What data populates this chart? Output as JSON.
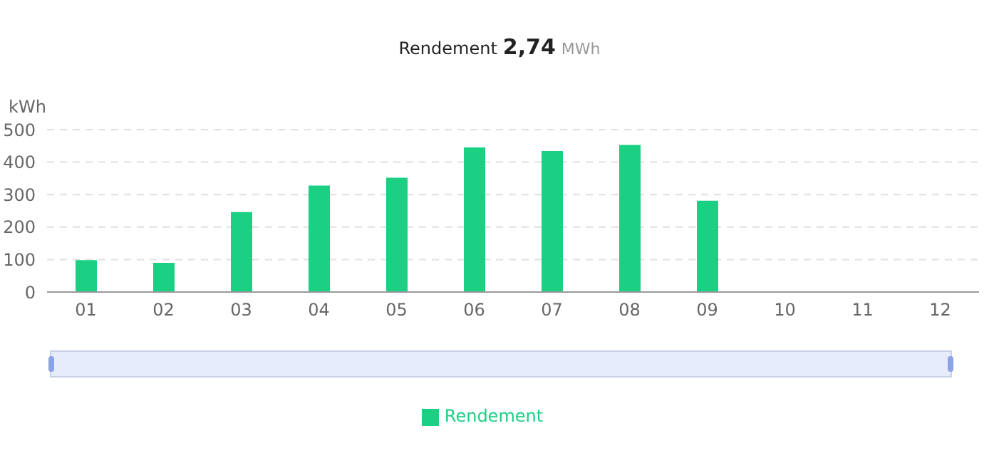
{
  "chart_data": {
    "type": "bar",
    "title": "Rendement 2,74 MWh",
    "ylabel": "kWh",
    "categories": [
      "01",
      "02",
      "03",
      "04",
      "05",
      "06",
      "07",
      "08",
      "09",
      "10",
      "11",
      "12"
    ],
    "series": [
      {
        "name": "Rendement",
        "color": "#1bd082",
        "values": [
          98,
          90,
          246,
          328,
          352,
          445,
          434,
          453,
          281,
          null,
          null,
          null
        ]
      }
    ],
    "ylim": [
      0,
      500
    ],
    "yticks": [
      0,
      100,
      200,
      300,
      400,
      500
    ],
    "grid": "y",
    "legend": "bottom"
  }
}
